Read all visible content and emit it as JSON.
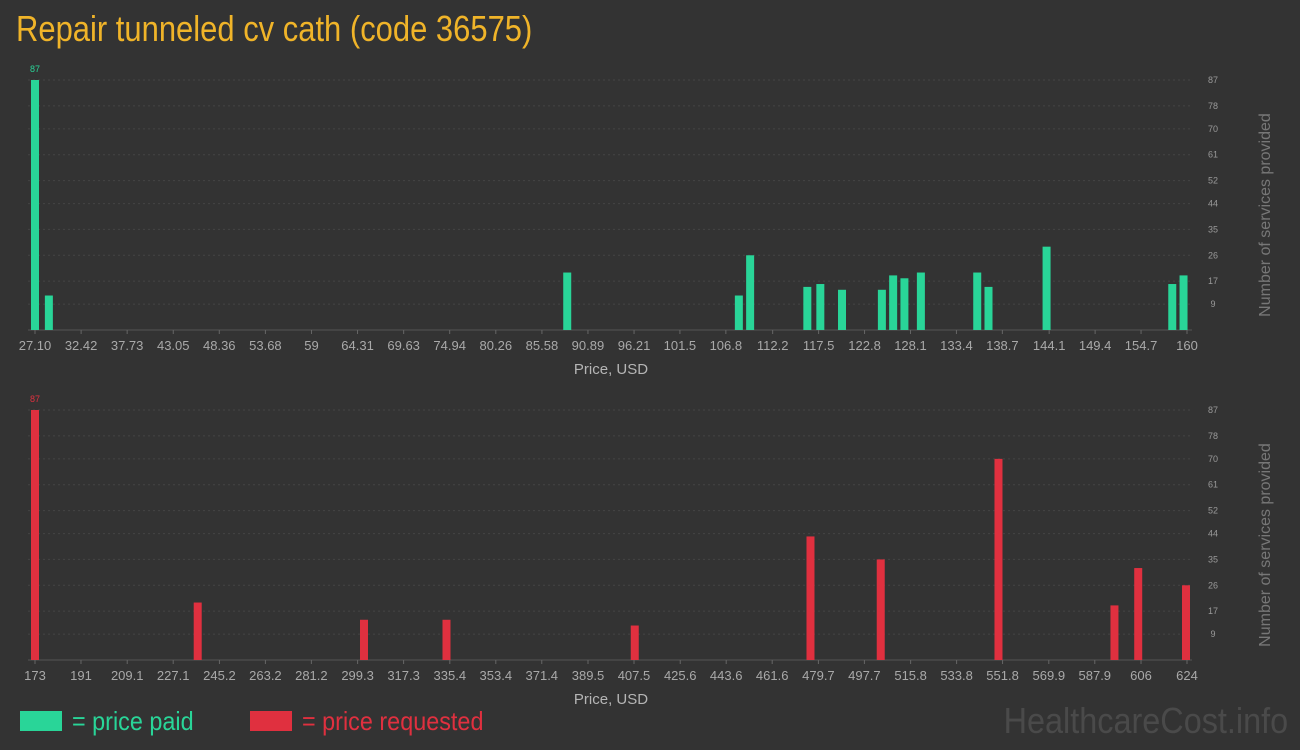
{
  "title": "Repair tunneled cv cath (code 36575)",
  "brand": "HealthcareCost.info",
  "legend": {
    "paid": {
      "label": "= price paid",
      "color": "#29d598"
    },
    "requested": {
      "label": "= price requested",
      "color": "#e0303f"
    }
  },
  "chart_data": [
    {
      "type": "bar",
      "name": "price paid",
      "color": "#29d598",
      "xlabel": "Price, USD",
      "ylabel": "Number of services provided",
      "x_tick_labels": [
        "27.10",
        "32.42",
        "37.73",
        "43.05",
        "48.36",
        "53.68",
        "59",
        "64.31",
        "69.63",
        "74.94",
        "80.26",
        "85.58",
        "90.89",
        "96.21",
        "101.5",
        "106.8",
        "112.2",
        "117.5",
        "122.8",
        "128.1",
        "133.4",
        "138.7",
        "144.1",
        "149.4",
        "154.7",
        "160"
      ],
      "x_ticks": [
        27.1,
        32.42,
        37.73,
        43.05,
        48.36,
        53.68,
        59,
        64.31,
        69.63,
        74.94,
        80.26,
        85.58,
        90.89,
        96.21,
        101.5,
        106.8,
        112.2,
        117.5,
        122.8,
        128.1,
        133.4,
        138.7,
        144.1,
        149.4,
        154.7,
        160
      ],
      "xlim": [
        27.1,
        160
      ],
      "y_ticks": [
        9,
        17,
        26,
        35,
        44,
        52,
        61,
        70,
        78,
        87
      ],
      "ylim": [
        0,
        87
      ],
      "max_label": "87",
      "bars": [
        {
          "x": 27.1,
          "y": 87
        },
        {
          "x": 28.7,
          "y": 12
        },
        {
          "x": 88.5,
          "y": 20
        },
        {
          "x": 108.3,
          "y": 12
        },
        {
          "x": 109.6,
          "y": 26
        },
        {
          "x": 116.2,
          "y": 15
        },
        {
          "x": 117.7,
          "y": 16
        },
        {
          "x": 120.2,
          "y": 14
        },
        {
          "x": 124.8,
          "y": 14
        },
        {
          "x": 126.1,
          "y": 19
        },
        {
          "x": 127.4,
          "y": 18
        },
        {
          "x": 129.3,
          "y": 20
        },
        {
          "x": 135.8,
          "y": 20
        },
        {
          "x": 137.1,
          "y": 15
        },
        {
          "x": 143.8,
          "y": 29
        },
        {
          "x": 158.3,
          "y": 16
        },
        {
          "x": 159.6,
          "y": 19
        }
      ]
    },
    {
      "type": "bar",
      "name": "price requested",
      "color": "#e0303f",
      "xlabel": "Price, USD",
      "ylabel": "Number of services provided",
      "x_tick_labels": [
        "173",
        "191",
        "209.1",
        "227.1",
        "245.2",
        "263.2",
        "281.2",
        "299.3",
        "317.3",
        "335.4",
        "353.4",
        "371.4",
        "389.5",
        "407.5",
        "425.6",
        "443.6",
        "461.6",
        "479.7",
        "497.7",
        "515.8",
        "533.8",
        "551.8",
        "569.9",
        "587.9",
        "606",
        "624"
      ],
      "x_ticks": [
        173,
        191,
        209.1,
        227.1,
        245.2,
        263.2,
        281.2,
        299.3,
        317.3,
        335.4,
        353.4,
        371.4,
        389.5,
        407.5,
        425.6,
        443.6,
        461.6,
        479.7,
        497.7,
        515.8,
        533.8,
        551.8,
        569.9,
        587.9,
        606,
        624
      ],
      "xlim": [
        173,
        624
      ],
      "y_ticks": [
        9,
        17,
        26,
        35,
        44,
        52,
        61,
        70,
        78,
        87
      ],
      "ylim": [
        0,
        87
      ],
      "max_label": "87",
      "bars": [
        {
          "x": 173,
          "y": 87
        },
        {
          "x": 236.7,
          "y": 20
        },
        {
          "x": 301.8,
          "y": 14
        },
        {
          "x": 334.1,
          "y": 14
        },
        {
          "x": 407.8,
          "y": 12
        },
        {
          "x": 476.6,
          "y": 43
        },
        {
          "x": 504.1,
          "y": 35
        },
        {
          "x": 550.2,
          "y": 70
        },
        {
          "x": 595.6,
          "y": 19
        },
        {
          "x": 604.9,
          "y": 32
        },
        {
          "x": 628.0,
          "y": 26
        }
      ]
    }
  ]
}
